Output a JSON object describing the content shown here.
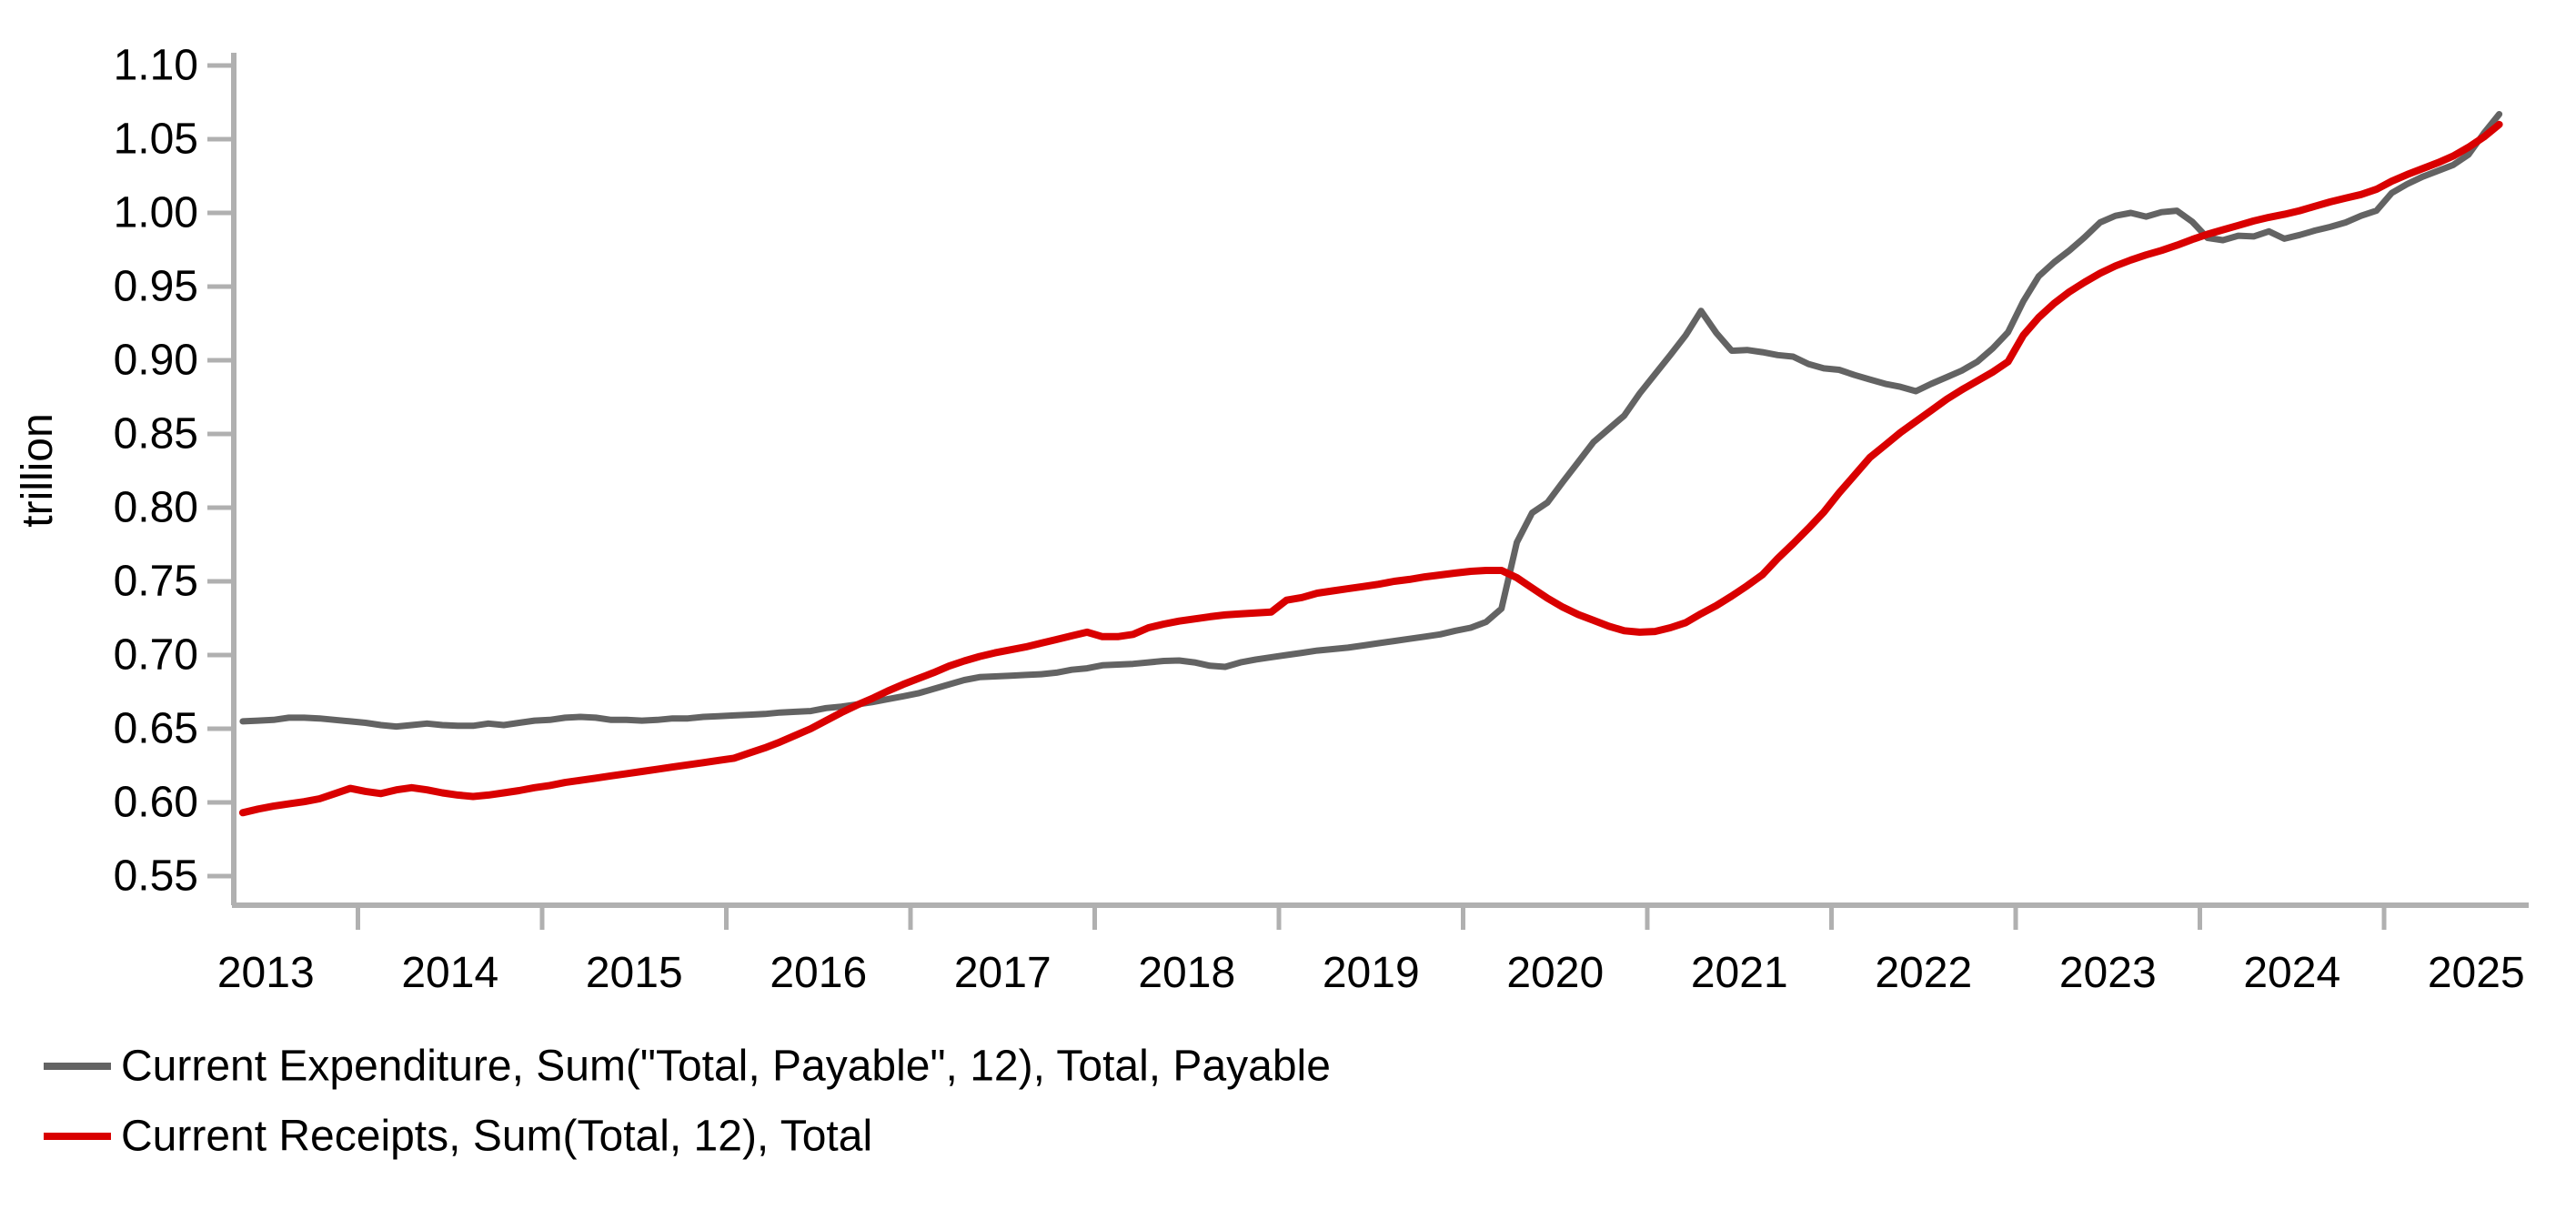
{
  "chart_data": {
    "type": "line",
    "title": "",
    "xlabel": "",
    "ylabel": "trillion",
    "ylim": [
      0.539,
      1.115
    ],
    "y_ticks": [
      "1.10",
      "1.05",
      "1.00",
      "0.95",
      "0.90",
      "0.85",
      "0.80",
      "0.75",
      "0.70",
      "0.65",
      "0.60",
      "0.55"
    ],
    "x_year_labels": [
      "2013",
      "2014",
      "2015",
      "2016",
      "2017",
      "2018",
      "2019",
      "2020",
      "2021",
      "2022",
      "2023",
      "2024",
      "2025"
    ],
    "grid": "off",
    "legend_position": "bottom-left",
    "frequency": "monthly",
    "x_start_decimal": 2013.375,
    "x_start_label": "May 2013",
    "x_end_label": "Aug 2025",
    "series": [
      {
        "name": "Current Expenditure, Sum(\"Total, Payable\", 12), Total, Payable",
        "color": "#636363",
        "values": [
          0.655,
          0.6555,
          0.656,
          0.6575,
          0.6575,
          0.657,
          0.656,
          0.655,
          0.654,
          0.6525,
          0.6515,
          0.6525,
          0.6535,
          0.6525,
          0.652,
          0.652,
          0.6535,
          0.6525,
          0.654,
          0.6555,
          0.656,
          0.6575,
          0.658,
          0.6575,
          0.656,
          0.656,
          0.6555,
          0.656,
          0.657,
          0.657,
          0.658,
          0.6585,
          0.659,
          0.6595,
          0.66,
          0.661,
          0.6615,
          0.662,
          0.664,
          0.665,
          0.6665,
          0.668,
          0.67,
          0.672,
          0.674,
          0.677,
          0.68,
          0.683,
          0.685,
          0.6855,
          0.686,
          0.6865,
          0.687,
          0.688,
          0.69,
          0.691,
          0.693,
          0.6935,
          0.694,
          0.695,
          0.696,
          0.6963,
          0.695,
          0.6927,
          0.692,
          0.695,
          0.697,
          0.6985,
          0.7,
          0.7015,
          0.703,
          0.704,
          0.705,
          0.7065,
          0.708,
          0.7095,
          0.711,
          0.7125,
          0.714,
          0.7165,
          0.7185,
          0.7225,
          0.7315,
          0.7765,
          0.7965,
          0.8035,
          0.8175,
          0.831,
          0.8445,
          0.8535,
          0.8625,
          0.8775,
          0.8905,
          0.9035,
          0.917,
          0.9335,
          0.9185,
          0.9065,
          0.907,
          0.9055,
          0.9035,
          0.9025,
          0.8975,
          0.8945,
          0.8935,
          0.89,
          0.887,
          0.884,
          0.882,
          0.879,
          0.884,
          0.8885,
          0.893,
          0.899,
          0.908,
          0.919,
          0.94,
          0.957,
          0.9665,
          0.9745,
          0.9835,
          0.9935,
          0.998,
          1.0,
          0.9975,
          1.0005,
          1.0015,
          0.994,
          0.983,
          0.9815,
          0.9845,
          0.984,
          0.9875,
          0.9825,
          0.985,
          0.988,
          0.9905,
          0.9935,
          0.998,
          1.0015,
          1.0135,
          1.0195,
          1.0245,
          1.0285,
          1.0325,
          1.0395,
          1.054,
          1.067
        ]
      },
      {
        "name": "Current Receipts, Sum(Total, 12), Total",
        "color": "#d90000",
        "values": [
          0.593,
          0.5955,
          0.5975,
          0.599,
          0.6005,
          0.6025,
          0.606,
          0.6095,
          0.6075,
          0.606,
          0.6085,
          0.61,
          0.6085,
          0.6065,
          0.605,
          0.604,
          0.605,
          0.6065,
          0.608,
          0.61,
          0.6115,
          0.6135,
          0.615,
          0.6165,
          0.618,
          0.6195,
          0.621,
          0.6225,
          0.624,
          0.6255,
          0.627,
          0.6285,
          0.63,
          0.6335,
          0.637,
          0.641,
          0.6455,
          0.65,
          0.6555,
          0.661,
          0.666,
          0.6705,
          0.6755,
          0.68,
          0.684,
          0.688,
          0.6925,
          0.696,
          0.699,
          0.7015,
          0.7035,
          0.7055,
          0.708,
          0.7105,
          0.713,
          0.7155,
          0.7125,
          0.7125,
          0.714,
          0.7185,
          0.721,
          0.723,
          0.7245,
          0.726,
          0.7272,
          0.7279,
          0.7285,
          0.7292,
          0.7372,
          0.739,
          0.742,
          0.7435,
          0.745,
          0.7465,
          0.748,
          0.75,
          0.7513,
          0.753,
          0.7543,
          0.7556,
          0.7568,
          0.7574,
          0.7574,
          0.7525,
          0.7455,
          0.7385,
          0.7325,
          0.7275,
          0.7235,
          0.7195,
          0.7165,
          0.7155,
          0.716,
          0.7185,
          0.722,
          0.728,
          0.7335,
          0.74,
          0.747,
          0.7545,
          0.7655,
          0.7755,
          0.786,
          0.797,
          0.81,
          0.822,
          0.834,
          0.8425,
          0.851,
          0.8585,
          0.866,
          0.8735,
          0.88,
          0.886,
          0.892,
          0.899,
          0.917,
          0.929,
          0.9385,
          0.9465,
          0.953,
          0.959,
          0.964,
          0.968,
          0.9715,
          0.9745,
          0.978,
          0.982,
          0.9855,
          0.9885,
          0.9915,
          0.9945,
          0.997,
          0.999,
          1.0015,
          1.0045,
          1.0075,
          1.01,
          1.0125,
          1.016,
          1.0215,
          1.026,
          1.03,
          1.034,
          1.0385,
          1.0445,
          1.0515,
          1.06
        ]
      }
    ]
  },
  "legend": {
    "items": [
      {
        "label": "Current Expenditure, Sum(\"Total, Payable\", 12), Total, Payable",
        "color": "#636363"
      },
      {
        "label": "Current Receipts, Sum(Total, 12), Total",
        "color": "#d90000"
      }
    ]
  }
}
